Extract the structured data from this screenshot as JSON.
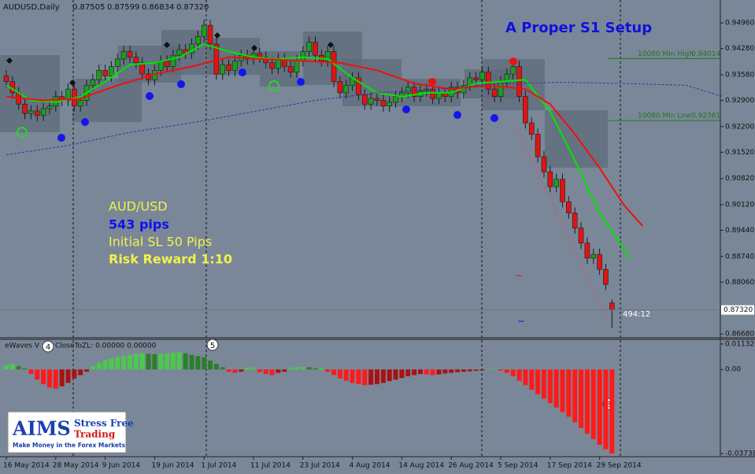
{
  "chart_data": [
    {
      "type": "candlestick",
      "symbol": "AUDUSD,Daily",
      "title": "A Proper S1 Setup",
      "categories": [
        "16 May 2014",
        null,
        null,
        null,
        null,
        null,
        null,
        null,
        "28 May 2014",
        null,
        null,
        null,
        null,
        null,
        null,
        null,
        "9 Jun 2014",
        null,
        null,
        null,
        null,
        null,
        null,
        null,
        "19 Jun 2014",
        null,
        null,
        null,
        null,
        null,
        null,
        null,
        "1 Jul 2014",
        null,
        null,
        null,
        null,
        null,
        null,
        null,
        "11 Jul 2014",
        null,
        null,
        null,
        null,
        null,
        null,
        null,
        "23 Jul 2014",
        null,
        null,
        null,
        null,
        null,
        null,
        null,
        "4 Aug 2014",
        null,
        null,
        null,
        null,
        null,
        null,
        null,
        "14 Aug 2014",
        null,
        null,
        null,
        null,
        null,
        null,
        null,
        "26 Aug 2014",
        null,
        null,
        null,
        null,
        null,
        null,
        null,
        "5 Sep 2014",
        null,
        null,
        null,
        null,
        null,
        null,
        null,
        "17 Sep 2014",
        null,
        null,
        null,
        null,
        null,
        null,
        null,
        "29 Sep 2014",
        null,
        null
      ],
      "open": [
        0.9355,
        0.934,
        0.931,
        0.928,
        0.9255,
        0.9262,
        0.925,
        0.9268,
        0.9275,
        0.93,
        0.929,
        0.932,
        0.9275,
        0.929,
        0.933,
        0.9345,
        0.937,
        0.9355,
        0.938,
        0.94,
        0.942,
        0.9405,
        0.939,
        0.936,
        0.9345,
        0.937,
        0.9395,
        0.938,
        0.941,
        0.9425,
        0.9415,
        0.944,
        0.946,
        0.949,
        0.944,
        0.936,
        0.9385,
        0.937,
        0.9395,
        0.941,
        0.94,
        0.9415,
        0.9405,
        0.939,
        0.9375,
        0.94,
        0.938,
        0.9365,
        0.9395,
        0.942,
        0.9445,
        0.941,
        0.9395,
        0.942,
        0.934,
        0.931,
        0.933,
        0.935,
        0.9305,
        0.928,
        0.9295,
        0.929,
        0.9275,
        0.9285,
        0.93,
        0.931,
        0.9325,
        0.93,
        0.9315,
        0.932,
        0.9295,
        0.931,
        0.93,
        0.9325,
        0.931,
        0.933,
        0.935,
        0.9345,
        0.9365,
        0.932,
        0.93,
        0.934,
        0.936,
        0.938,
        0.93,
        0.923,
        0.92,
        0.914,
        0.91,
        0.906,
        0.908,
        0.902,
        0.899,
        0.895,
        0.891,
        0.887,
        0.888,
        0.884,
        0.87505
      ],
      "high": [
        0.937,
        0.9355,
        0.9325,
        0.9295,
        0.9277,
        0.9277,
        0.9283,
        0.929,
        0.9315,
        0.9315,
        0.9335,
        0.9335,
        0.9305,
        0.9345,
        0.936,
        0.9385,
        0.9385,
        0.9395,
        0.9415,
        0.9435,
        0.9435,
        0.942,
        0.9405,
        0.9375,
        0.9385,
        0.941,
        0.941,
        0.9425,
        0.944,
        0.944,
        0.9455,
        0.9475,
        0.9505,
        0.9505,
        0.9455,
        0.94,
        0.94,
        0.941,
        0.9425,
        0.9425,
        0.943,
        0.943,
        0.942,
        0.9405,
        0.9415,
        0.9415,
        0.9395,
        0.941,
        0.9435,
        0.946,
        0.946,
        0.9425,
        0.9435,
        0.9435,
        0.9355,
        0.9345,
        0.9365,
        0.9365,
        0.932,
        0.931,
        0.931,
        0.9305,
        0.93,
        0.9315,
        0.9325,
        0.934,
        0.934,
        0.933,
        0.9335,
        0.9335,
        0.9325,
        0.9325,
        0.934,
        0.934,
        0.9345,
        0.9365,
        0.9365,
        0.938,
        0.938,
        0.9335,
        0.9355,
        0.9375,
        0.9395,
        0.9395,
        0.9315,
        0.9245,
        0.9215,
        0.9155,
        0.9115,
        0.9095,
        0.9095,
        0.9035,
        0.9005,
        0.8965,
        0.8925,
        0.8895,
        0.8895,
        0.8855,
        0.87599
      ],
      "low": [
        0.9325,
        0.9295,
        0.9265,
        0.924,
        0.924,
        0.9235,
        0.9235,
        0.9253,
        0.926,
        0.9275,
        0.9275,
        0.926,
        0.926,
        0.9275,
        0.9315,
        0.933,
        0.934,
        0.934,
        0.9365,
        0.9385,
        0.939,
        0.9375,
        0.9345,
        0.933,
        0.933,
        0.9355,
        0.9365,
        0.9365,
        0.9395,
        0.94,
        0.94,
        0.9425,
        0.9445,
        0.9425,
        0.9345,
        0.9345,
        0.9355,
        0.9355,
        0.938,
        0.9385,
        0.9385,
        0.939,
        0.9375,
        0.936,
        0.936,
        0.9365,
        0.935,
        0.935,
        0.938,
        0.9405,
        0.9395,
        0.938,
        0.938,
        0.9325,
        0.9295,
        0.9295,
        0.9315,
        0.929,
        0.9265,
        0.9265,
        0.9275,
        0.926,
        0.926,
        0.927,
        0.9285,
        0.9295,
        0.9285,
        0.9285,
        0.93,
        0.928,
        0.928,
        0.9285,
        0.9285,
        0.9295,
        0.9295,
        0.9315,
        0.933,
        0.933,
        0.9305,
        0.9285,
        0.9285,
        0.9325,
        0.9345,
        0.9285,
        0.9215,
        0.9185,
        0.9125,
        0.9085,
        0.9045,
        0.9045,
        0.9005,
        0.8975,
        0.8935,
        0.8895,
        0.8855,
        0.8855,
        0.8825,
        0.8785,
        0.86834
      ],
      "close": [
        0.934,
        0.931,
        0.928,
        0.9255,
        0.9262,
        0.925,
        0.9268,
        0.9275,
        0.93,
        0.929,
        0.932,
        0.9275,
        0.929,
        0.933,
        0.9345,
        0.937,
        0.9355,
        0.938,
        0.94,
        0.942,
        0.9405,
        0.939,
        0.936,
        0.9345,
        0.937,
        0.9395,
        0.938,
        0.941,
        0.9425,
        0.9415,
        0.944,
        0.946,
        0.949,
        0.944,
        0.936,
        0.9385,
        0.937,
        0.9395,
        0.941,
        0.94,
        0.9415,
        0.9405,
        0.939,
        0.9375,
        0.94,
        0.938,
        0.9365,
        0.9395,
        0.942,
        0.9445,
        0.941,
        0.9395,
        0.942,
        0.934,
        0.931,
        0.933,
        0.935,
        0.9305,
        0.928,
        0.9295,
        0.929,
        0.9275,
        0.9285,
        0.93,
        0.931,
        0.9325,
        0.93,
        0.9315,
        0.932,
        0.9295,
        0.931,
        0.93,
        0.9325,
        0.931,
        0.933,
        0.935,
        0.9345,
        0.9365,
        0.932,
        0.93,
        0.934,
        0.936,
        0.938,
        0.93,
        0.923,
        0.92,
        0.914,
        0.91,
        0.906,
        0.908,
        0.902,
        0.899,
        0.895,
        0.891,
        0.887,
        0.888,
        0.884,
        0.88,
        0.8732
      ],
      "last_price": {
        "value": 0.8732,
        "label": "0.87320"
      },
      "ylim": [
        0.866,
        0.9553
      ],
      "yticks": [
        {
          "value": 0.9496,
          "label": "0.94960"
        },
        {
          "value": 0.9428,
          "label": "0.94280"
        },
        {
          "value": 0.9358,
          "label": "0.93580"
        },
        {
          "value": 0.929,
          "label": "0.92900"
        },
        {
          "value": 0.922,
          "label": "0.92200"
        },
        {
          "value": 0.9152,
          "label": "0.91520"
        },
        {
          "value": 0.9082,
          "label": "0.90820"
        },
        {
          "value": 0.9012,
          "label": "0.90120"
        },
        {
          "value": 0.8944,
          "label": "0.89440"
        },
        {
          "value": 0.8874,
          "label": "0.88740"
        },
        {
          "value": 0.8806,
          "label": "0.88060"
        },
        {
          "value": 0.8668,
          "label": "0.86680"
        }
      ],
      "lines": [
        {
          "color": "#00e600",
          "width": 2,
          "dashed": false,
          "x": [
            0,
            4,
            8,
            12,
            16,
            20,
            24,
            28,
            32,
            36,
            40,
            44,
            48,
            52,
            56,
            60,
            64,
            68,
            72,
            76,
            80,
            84,
            88,
            92,
            96,
            101
          ],
          "values": [
            0.933,
            0.929,
            0.9285,
            0.93,
            0.934,
            0.9385,
            0.939,
            0.9405,
            0.944,
            0.942,
            0.9405,
            0.94,
            0.9405,
            0.94,
            0.935,
            0.931,
            0.93,
            0.931,
            0.931,
            0.9335,
            0.934,
            0.9345,
            0.926,
            0.913,
            0.899,
            0.8868
          ]
        },
        {
          "color": "#ee1111",
          "width": 2,
          "dashed": false,
          "x": [
            0,
            6,
            12,
            18,
            24,
            30,
            36,
            42,
            48,
            54,
            60,
            66,
            72,
            78,
            84,
            88,
            92,
            96,
            100,
            103
          ],
          "values": [
            0.93,
            0.929,
            0.9295,
            0.933,
            0.936,
            0.938,
            0.9405,
            0.94,
            0.9395,
            0.939,
            0.937,
            0.9335,
            0.932,
            0.933,
            0.932,
            0.928,
            0.92,
            0.911,
            0.901,
            0.8955
          ]
        },
        {
          "color": "#4b2a9a",
          "width": 1,
          "dashed": true,
          "x": [
            0,
            10,
            20,
            30,
            40,
            50,
            60,
            70,
            80,
            90,
            100,
            110,
            116
          ],
          "values": [
            0.9145,
            0.917,
            0.9205,
            0.923,
            0.926,
            0.929,
            0.931,
            0.932,
            0.9335,
            0.9338,
            0.9335,
            0.933,
            0.93
          ]
        }
      ],
      "levels": [
        {
          "name": "10080 Min High",
          "value": 0.94014,
          "color": "#1d7a1d"
        },
        {
          "name": "10080 Min Low",
          "value": 0.92361,
          "color": "#1d7a1d"
        }
      ],
      "annotations": [
        "AUD/USD",
        "543 pips",
        "Initial SL 50 Pips",
        "Risk Reward 1:10",
        "494:12"
      ]
    },
    {
      "type": "bar",
      "name": "eWaves V",
      "label": "CloseToZL: 0.00000 0.00000",
      "values": [
        0.002,
        0.0025,
        0.0015,
        0.0005,
        -0.002,
        -0.0045,
        -0.0065,
        -0.008,
        -0.0085,
        -0.0075,
        -0.006,
        -0.004,
        -0.0025,
        -0.001,
        0.0015,
        0.003,
        0.004,
        0.005,
        0.0055,
        0.006,
        0.0065,
        0.007,
        0.0072,
        0.007,
        0.0068,
        0.007,
        0.0072,
        0.0075,
        0.0078,
        0.0072,
        0.0065,
        0.006,
        0.0055,
        0.004,
        0.0025,
        0.001,
        -0.001,
        -0.0015,
        -0.001,
        0.0008,
        0.001,
        -0.0012,
        -0.002,
        -0.0025,
        -0.0015,
        -0.001,
        0.0008,
        0.001,
        0.0012,
        0.001,
        0.0005,
        0.0008,
        -0.001,
        -0.0025,
        -0.004,
        -0.005,
        -0.006,
        -0.0065,
        -0.007,
        -0.0068,
        -0.0065,
        -0.006,
        -0.0052,
        -0.0045,
        -0.0038,
        -0.003,
        -0.0025,
        -0.002,
        -0.0022,
        -0.0025,
        -0.0022,
        -0.0018,
        -0.0015,
        -0.0012,
        -0.001,
        -0.0008,
        -0.0006,
        -0.0004,
        0.0002,
        0.0003,
        -0.0005,
        -0.0015,
        -0.003,
        -0.005,
        -0.007,
        -0.009,
        -0.011,
        -0.013,
        -0.015,
        -0.017,
        -0.019,
        -0.021,
        -0.0235,
        -0.026,
        -0.0285,
        -0.031,
        -0.0335,
        -0.0355,
        -0.0374
      ],
      "ylim": [
        -0.0388,
        0.0134
      ],
      "yticks": [
        0.011326,
        {
          "value": 0,
          "label": "0.00"
        },
        -0.037384
      ],
      "markers": [
        "4",
        "5",
        "3"
      ]
    }
  ],
  "logo": {
    "name": "AIMS",
    "line1": "Stress Free",
    "line2": "Trading",
    "tagline": "Make Money in the Forex Markets"
  }
}
